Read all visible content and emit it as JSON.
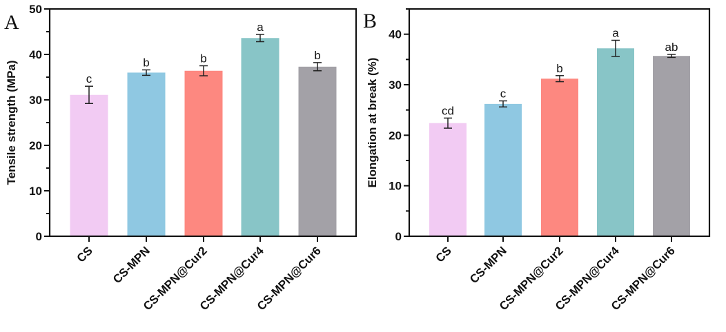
{
  "chart_data": [
    {
      "type": "bar",
      "panel_label": "A",
      "title": "",
      "xlabel": "",
      "ylabel": "Tensile strength (MPa)",
      "ylim": [
        0,
        50
      ],
      "yticks": [
        0,
        10,
        20,
        30,
        40,
        50
      ],
      "grid": false,
      "categories": [
        "CS",
        "CS-MPN",
        "CS-MPN@Cur2",
        "CS-MPN@Cur4",
        "CS-MPN@Cur6"
      ],
      "values": [
        31.1,
        36.0,
        36.4,
        43.6,
        37.3
      ],
      "errors": [
        1.9,
        0.6,
        1.1,
        0.8,
        0.9
      ],
      "significance": [
        "c",
        "b",
        "b",
        "a",
        "b"
      ],
      "colors": [
        "#f2cbf3",
        "#8fc8e2",
        "#fd8880",
        "#88c5c7",
        "#a3a1a7"
      ]
    },
    {
      "type": "bar",
      "panel_label": "B",
      "title": "",
      "xlabel": "",
      "ylabel": "Elongation at break (%)",
      "ylim": [
        0,
        45
      ],
      "yticks": [
        0,
        10,
        20,
        30,
        40
      ],
      "grid": false,
      "categories": [
        "CS",
        "CS-MPN",
        "CS-MPN@Cur2",
        "CS-MPN@Cur4",
        "CS-MPN@Cur6"
      ],
      "values": [
        22.4,
        26.2,
        31.2,
        37.2,
        35.7
      ],
      "errors": [
        1.0,
        0.6,
        0.6,
        1.6,
        0.3
      ],
      "significance": [
        "cd",
        "c",
        "b",
        "a",
        "ab"
      ],
      "colors": [
        "#f2cbf3",
        "#8fc8e2",
        "#fd8880",
        "#88c5c7",
        "#a3a1a7"
      ]
    }
  ]
}
